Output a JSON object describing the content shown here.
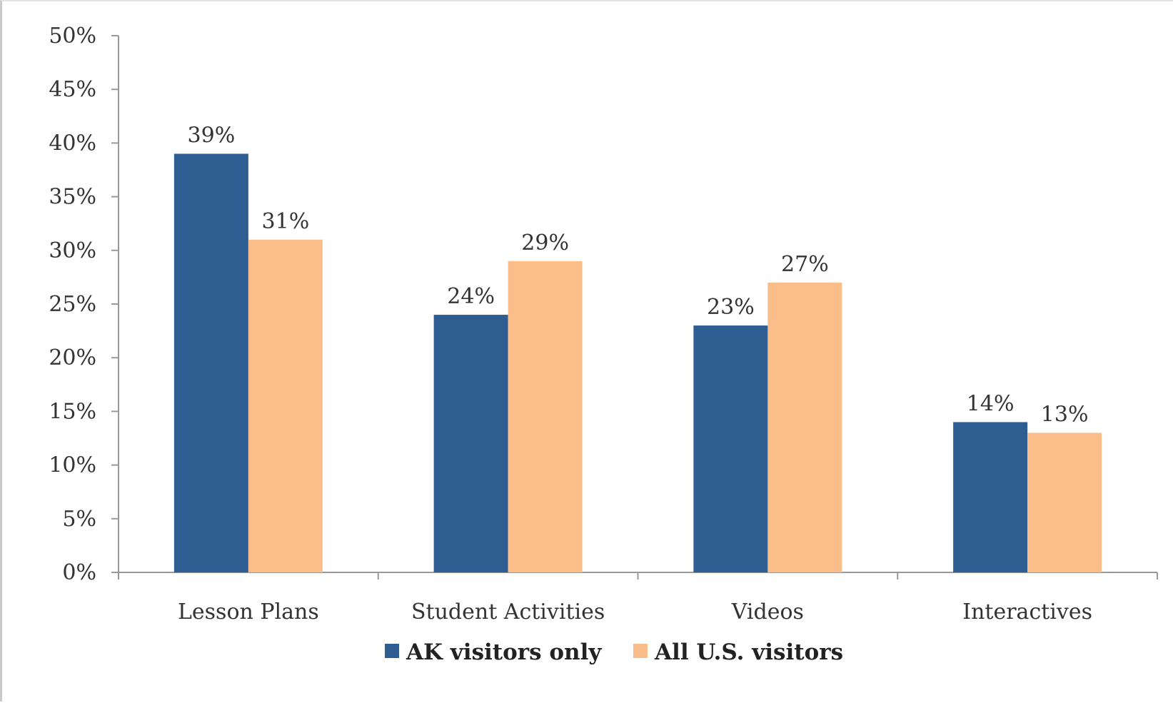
{
  "colors": {
    "ak_series": "#2e5e91",
    "us_series": "#fbbd8a",
    "axis": "#999999",
    "text": "#333333"
  },
  "chart_data": {
    "type": "bar",
    "categories": [
      "Lesson Plans",
      "Student Activities",
      "Videos",
      "Interactives"
    ],
    "series": [
      {
        "name": "AK visitors only",
        "values": [
          39,
          24,
          23,
          14
        ],
        "labels": [
          "39%",
          "24%",
          "23%",
          "14%"
        ]
      },
      {
        "name": "All U.S. visitors",
        "values": [
          31,
          29,
          27,
          13
        ],
        "labels": [
          "31%",
          "29%",
          "27%",
          "13%"
        ]
      }
    ],
    "ylim": [
      0,
      50
    ],
    "y_ticks": [
      0,
      5,
      10,
      15,
      20,
      25,
      30,
      35,
      40,
      45,
      50
    ],
    "y_tick_labels": [
      "0%",
      "5%",
      "10%",
      "15%",
      "20%",
      "25%",
      "30%",
      "35%",
      "40%",
      "45%",
      "50%"
    ],
    "grid": false,
    "legend_position": "bottom"
  }
}
